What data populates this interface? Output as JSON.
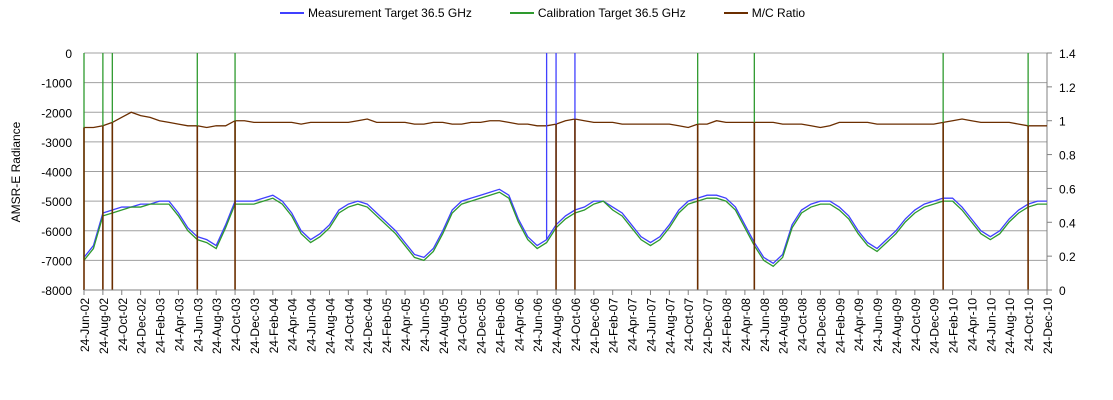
{
  "chart_data": {
    "type": "line",
    "legend": [
      {
        "name": "Measurement Target 36.5 GHz",
        "color": "#4040ff"
      },
      {
        "name": "Calibration Target 36.5 GHz",
        "color": "#2e9a2e"
      },
      {
        "name": "M/C Ratio",
        "color": "#6b2e00"
      }
    ],
    "legend_position": "top",
    "ylabel": "AMSR-E Radiance",
    "ylim": [
      -8000,
      0
    ],
    "yticks": [
      0,
      -1000,
      -2000,
      -3000,
      -4000,
      -5000,
      -6000,
      -7000,
      -8000
    ],
    "y2lim": [
      0,
      1.4
    ],
    "y2ticks": [
      0,
      0.2,
      0.4,
      0.6,
      0.8,
      1,
      1.2,
      1.4
    ],
    "x_start": "2002-06",
    "x_step": "monthly",
    "xticks": [
      "24-Jun-02",
      "24-Aug-02",
      "24-Oct-02",
      "24-Dec-02",
      "24-Feb-03",
      "24-Apr-03",
      "24-Jun-03",
      "24-Aug-03",
      "24-Oct-03",
      "24-Dec-03",
      "24-Feb-04",
      "24-Apr-04",
      "24-Jun-04",
      "24-Aug-04",
      "24-Oct-04",
      "24-Dec-04",
      "24-Feb-05",
      "24-Apr-05",
      "24-Jun-05",
      "24-Aug-05",
      "24-Oct-05",
      "24-Dec-05",
      "24-Feb-06",
      "24-Apr-06",
      "24-Jun-06",
      "24-Aug-06",
      "24-Oct-06",
      "24-Dec-06",
      "24-Feb-07",
      "24-Apr-07",
      "24-Jun-07",
      "24-Aug-07",
      "24-Oct-07",
      "24-Dec-07",
      "24-Feb-08",
      "24-Apr-08",
      "24-Jun-08",
      "24-Aug-08",
      "24-Oct-08",
      "24-Dec-08",
      "24-Feb-09",
      "24-Apr-09",
      "24-Jun-09",
      "24-Aug-09",
      "24-Oct-09",
      "24-Dec-09",
      "24-Feb-10",
      "24-Apr-10",
      "24-Jun-10",
      "24-Aug-10",
      "24-Oct-10",
      "24-Dec-10"
    ],
    "series": [
      {
        "name": "Measurement Target 36.5 GHz",
        "axis": "left",
        "values": [
          -6900,
          -6500,
          -5400,
          -5300,
          -5200,
          -5200,
          -5100,
          -5100,
          -5000,
          -5000,
          -5400,
          -5900,
          -6200,
          -6300,
          -6500,
          -5800,
          -5000,
          -5000,
          -5000,
          -4900,
          -4800,
          -5000,
          -5400,
          -6000,
          -6300,
          -6100,
          -5800,
          -5300,
          -5100,
          -5000,
          -5100,
          -5400,
          -5700,
          -6000,
          -6400,
          -6800,
          -6900,
          -6600,
          -6000,
          -5300,
          -5000,
          -4900,
          -4800,
          -4700,
          -4600,
          -4800,
          -5600,
          -6200,
          -6500,
          -6300,
          -5800,
          -5500,
          -5300,
          -5200,
          -5000,
          -5000,
          -5200,
          -5400,
          -5800,
          -6200,
          -6400,
          -6200,
          -5800,
          -5300,
          -5000,
          -4900,
          -4800,
          -4800,
          -4900,
          -5200,
          -5800,
          -6400,
          -6900,
          -7100,
          -6800,
          -5800,
          -5300,
          -5100,
          -5000,
          -5000,
          -5200,
          -5500,
          -6000,
          -6400,
          -6600,
          -6300,
          -6000,
          -5600,
          -5300,
          -5100,
          -5000,
          -4900,
          -4900,
          -5200,
          -5600,
          -6000,
          -6200,
          -6000,
          -5600,
          -5300,
          -5100,
          -5000,
          -5000
        ]
      },
      {
        "name": "Calibration Target 36.5 GHz",
        "axis": "left",
        "values": [
          -7000,
          -6600,
          -5500,
          -5400,
          -5300,
          -5200,
          -5200,
          -5100,
          -5100,
          -5100,
          -5500,
          -6000,
          -6300,
          -6400,
          -6600,
          -5900,
          -5100,
          -5100,
          -5100,
          -5000,
          -4900,
          -5100,
          -5500,
          -6100,
          -6400,
          -6200,
          -5900,
          -5400,
          -5200,
          -5100,
          -5200,
          -5500,
          -5800,
          -6100,
          -6500,
          -6900,
          -7000,
          -6700,
          -6100,
          -5400,
          -5100,
          -5000,
          -4900,
          -4800,
          -4700,
          -4900,
          -5700,
          -6300,
          -6600,
          -6400,
          -5900,
          -5600,
          -5400,
          -5300,
          -5100,
          -5000,
          -5300,
          -5500,
          -5900,
          -6300,
          -6500,
          -6300,
          -5900,
          -5400,
          -5100,
          -5000,
          -4900,
          -4900,
          -5000,
          -5300,
          -5900,
          -6500,
          -7000,
          -7200,
          -6900,
          -5900,
          -5400,
          -5200,
          -5100,
          -5100,
          -5300,
          -5600,
          -6100,
          -6500,
          -6700,
          -6400,
          -6100,
          -5700,
          -5400,
          -5200,
          -5100,
          -5000,
          -5000,
          -5300,
          -5700,
          -6100,
          -6300,
          -6100,
          -5700,
          -5400,
          -5200,
          -5100,
          -5100
        ]
      },
      {
        "name": "M/C Ratio",
        "axis": "right",
        "values": [
          0.96,
          0.96,
          0.97,
          0.99,
          1.02,
          1.05,
          1.03,
          1.02,
          1.0,
          0.99,
          0.98,
          0.97,
          0.97,
          0.96,
          0.97,
          0.97,
          1.0,
          1.0,
          0.99,
          0.99,
          0.99,
          0.99,
          0.99,
          0.98,
          0.99,
          0.99,
          0.99,
          0.99,
          0.99,
          1.0,
          1.01,
          0.99,
          0.99,
          0.99,
          0.99,
          0.98,
          0.98,
          0.99,
          0.99,
          0.98,
          0.98,
          0.99,
          0.99,
          1.0,
          1.0,
          0.99,
          0.98,
          0.98,
          0.97,
          0.97,
          0.98,
          1.0,
          1.01,
          1.0,
          0.99,
          0.99,
          0.99,
          0.98,
          0.98,
          0.98,
          0.98,
          0.98,
          0.98,
          0.97,
          0.96,
          0.98,
          0.98,
          1.0,
          0.99,
          0.99,
          0.99,
          0.99,
          0.99,
          0.99,
          0.98,
          0.98,
          0.98,
          0.97,
          0.96,
          0.97,
          0.99,
          0.99,
          0.99,
          0.99,
          0.98,
          0.98,
          0.98,
          0.98,
          0.98,
          0.98,
          0.98,
          0.99,
          1.0,
          1.01,
          1.0,
          0.99,
          0.99,
          0.99,
          0.99,
          0.98,
          0.97,
          0.97,
          0.97
        ]
      }
    ],
    "dropouts": {
      "ratio_to_zero": [
        0,
        2,
        3,
        12,
        16,
        50,
        52,
        65,
        71,
        91,
        100
      ],
      "calibration_to_top": [
        0,
        2,
        3,
        12,
        16,
        65,
        71,
        91,
        100
      ],
      "measurement_to_top": [
        49,
        50,
        52
      ]
    }
  }
}
